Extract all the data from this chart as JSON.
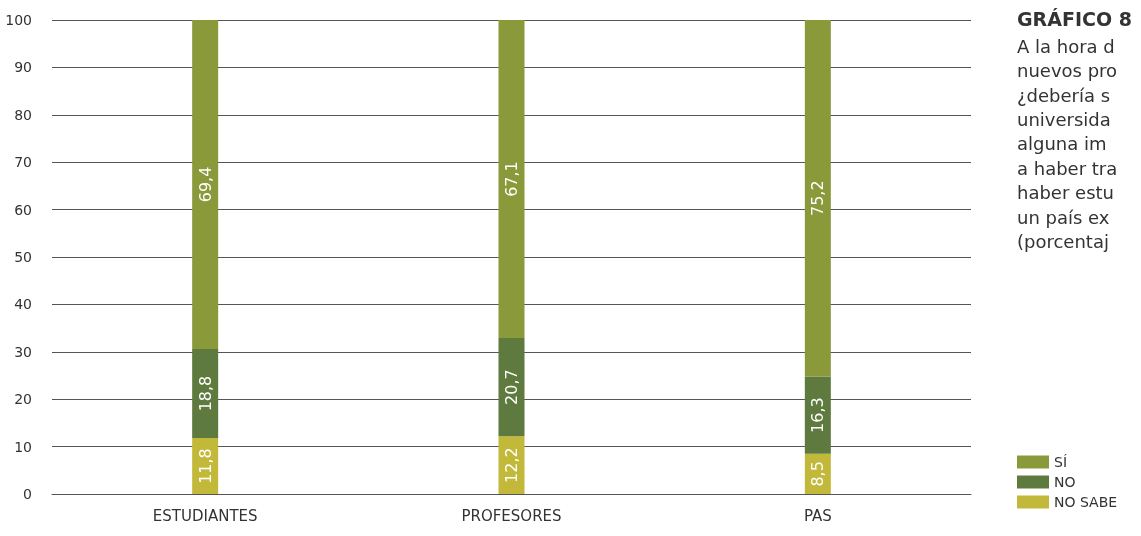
{
  "chart_data": {
    "type": "bar",
    "title": "GRÁFICO 8",
    "subtitle": "A la hora d\nnuevos pro\n¿debería s\nuniversida\nalguna im\na haber tra\nhaber estu\nun país ex\n(porcentaj",
    "categories": [
      "ESTUDIANTES",
      "PROFESORES",
      "PAS"
    ],
    "stacked": true,
    "series": [
      {
        "name": "NO SABE",
        "color": "#c2b83a",
        "values": [
          11.8,
          12.2,
          8.5
        ],
        "value_labels": [
          "11,8",
          "12,2",
          "8,5"
        ]
      },
      {
        "name": "NO",
        "color": "#5e7a3e",
        "values": [
          18.8,
          20.7,
          16.3
        ],
        "value_labels": [
          "18,8",
          "20,7",
          "16,3"
        ]
      },
      {
        "name": "SÍ",
        "color": "#8a9a3b",
        "values": [
          69.4,
          67.1,
          75.2
        ],
        "value_labels": [
          "69,4",
          "67,1",
          "75,2"
        ]
      }
    ],
    "ylim": [
      0,
      100
    ],
    "yticks": [
      0,
      10,
      20,
      30,
      40,
      50,
      60,
      70,
      80,
      90,
      100
    ],
    "grid": "y",
    "legend": "right"
  }
}
